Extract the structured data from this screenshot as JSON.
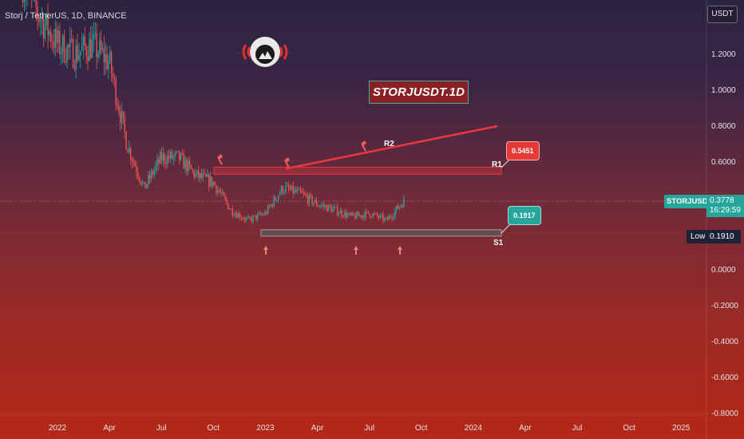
{
  "header": {
    "symbol_title": "Storj / TetherUS, 1D, BINANCE"
  },
  "axis": {
    "currency_button": "USDT",
    "y_ticks": [
      "1.2000",
      "1.0000",
      "0.8000",
      "0.6000",
      "0.4000",
      "0.2000",
      "0.0000",
      "-0.2000",
      "-0.4000",
      "-0.6000",
      "-0.8000"
    ],
    "x_ticks": [
      "2022",
      "Apr",
      "Jul",
      "Oct",
      "2023",
      "Apr",
      "Jul",
      "Oct",
      "2024",
      "Apr",
      "Jul",
      "Oct",
      "2025"
    ]
  },
  "annotations": {
    "watermark": "STORJUSDT.1D",
    "r1_label": "R1",
    "r2_label": "R2",
    "s1_label": "S1",
    "r1_callout": "0.5451",
    "s1_callout": "0.1917"
  },
  "price_labels": {
    "symbol": "STORJUSDT",
    "price": "0.3778",
    "countdown": "16:29:59",
    "low_label": "Low",
    "low_value": "0.1910"
  },
  "colors": {
    "up": "#26a69a",
    "down": "#ef5350",
    "resistance": "#e8393f",
    "support": "#26a69a"
  },
  "chart_data": {
    "type": "line",
    "title": "Storj / TetherUS, 1D, BINANCE",
    "xlabel": "",
    "ylabel": "",
    "ylim": [
      -0.8,
      1.5
    ],
    "x": [
      "2021-11",
      "2021-12",
      "2022-01",
      "2022-02",
      "2022-03",
      "2022-04",
      "2022-05",
      "2022-06",
      "2022-07",
      "2022-08",
      "2022-09",
      "2022-10",
      "2022-11",
      "2022-12",
      "2023-01",
      "2023-02",
      "2023-03",
      "2023-04",
      "2023-05",
      "2023-06",
      "2023-07",
      "2023-08",
      "2023-09"
    ],
    "series": [
      {
        "values": [
          1.6,
          1.4,
          1.25,
          1.2,
          1.25,
          1.15,
          0.7,
          0.45,
          0.62,
          0.62,
          0.52,
          0.48,
          0.33,
          0.27,
          0.31,
          0.45,
          0.42,
          0.36,
          0.33,
          0.29,
          0.31,
          0.27,
          0.38
        ]
      }
    ],
    "levels": {
      "R1": 0.5451,
      "S1": 0.1917,
      "last_price": 0.3778,
      "low": 0.191
    }
  }
}
